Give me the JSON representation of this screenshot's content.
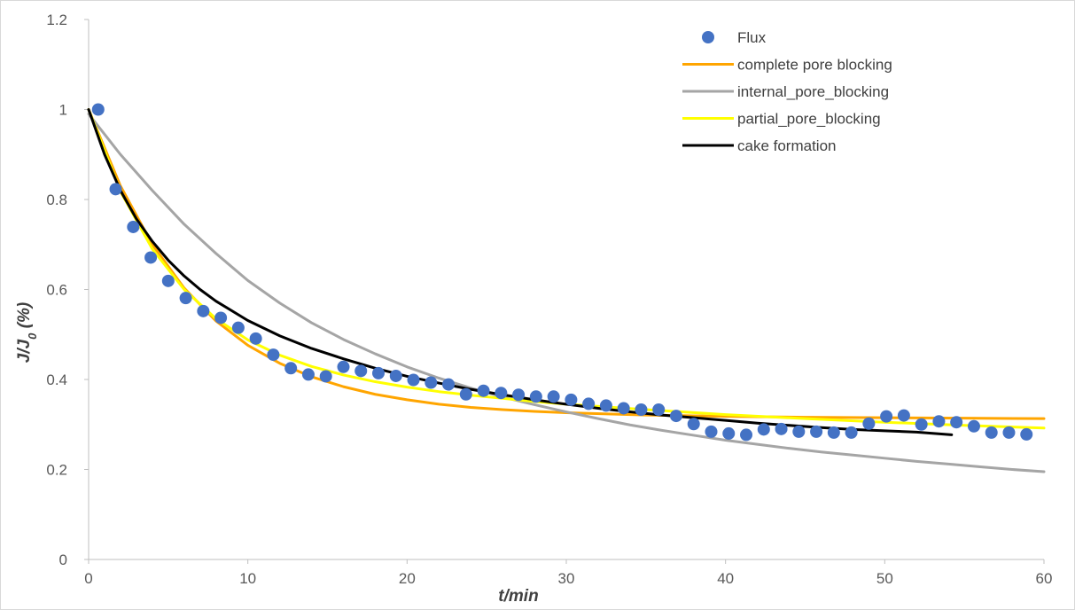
{
  "chart_data": {
    "type": "scatter",
    "title": "",
    "xlabel": "t/min",
    "ylabel_main": "J/J",
    "ylabel_sub": "0",
    "ylabel_suffix": " (%)",
    "xlim": [
      0,
      60
    ],
    "ylim": [
      0,
      1.2
    ],
    "xticks": [
      0,
      10,
      20,
      30,
      40,
      50,
      60
    ],
    "yticks": [
      0,
      0.2,
      0.4,
      0.6,
      0.8,
      1,
      1.2
    ],
    "grid": false,
    "legend_position": "top-right",
    "series": [
      {
        "name": "Flux",
        "kind": "marker",
        "color": "#4472C4",
        "points": [
          [
            0.6,
            1.0
          ],
          [
            1.7,
            0.823
          ],
          [
            2.8,
            0.739
          ],
          [
            3.9,
            0.671
          ],
          [
            5.0,
            0.619
          ],
          [
            6.1,
            0.581
          ],
          [
            7.2,
            0.552
          ],
          [
            8.3,
            0.537
          ],
          [
            9.4,
            0.515
          ],
          [
            10.5,
            0.491
          ],
          [
            11.6,
            0.455
          ],
          [
            12.7,
            0.425
          ],
          [
            13.8,
            0.411
          ],
          [
            14.9,
            0.407
          ],
          [
            16.0,
            0.428
          ],
          [
            17.1,
            0.419
          ],
          [
            18.2,
            0.414
          ],
          [
            19.3,
            0.408
          ],
          [
            20.4,
            0.399
          ],
          [
            21.5,
            0.393
          ],
          [
            22.6,
            0.389
          ],
          [
            23.7,
            0.367
          ],
          [
            24.8,
            0.375
          ],
          [
            25.9,
            0.37
          ],
          [
            27.0,
            0.366
          ],
          [
            28.1,
            0.362
          ],
          [
            29.2,
            0.362
          ],
          [
            30.3,
            0.355
          ],
          [
            31.4,
            0.346
          ],
          [
            32.5,
            0.342
          ],
          [
            33.6,
            0.336
          ],
          [
            34.7,
            0.333
          ],
          [
            35.8,
            0.333
          ],
          [
            36.9,
            0.319
          ],
          [
            38.0,
            0.301
          ],
          [
            39.1,
            0.284
          ],
          [
            40.2,
            0.28
          ],
          [
            41.3,
            0.277
          ],
          [
            42.4,
            0.289
          ],
          [
            43.5,
            0.29
          ],
          [
            44.6,
            0.284
          ],
          [
            45.7,
            0.284
          ],
          [
            46.8,
            0.282
          ],
          [
            47.9,
            0.282
          ],
          [
            49.0,
            0.302
          ],
          [
            50.1,
            0.318
          ],
          [
            51.2,
            0.32
          ],
          [
            52.3,
            0.3
          ],
          [
            53.4,
            0.307
          ],
          [
            54.5,
            0.305
          ],
          [
            55.6,
            0.296
          ],
          [
            56.7,
            0.282
          ],
          [
            57.8,
            0.282
          ],
          [
            58.9,
            0.278
          ]
        ]
      },
      {
        "name": "complete pore blocking",
        "kind": "line",
        "color": "#FFA500",
        "points": [
          [
            0,
            1.0
          ],
          [
            2,
            0.83
          ],
          [
            4,
            0.7
          ],
          [
            6,
            0.603
          ],
          [
            8,
            0.53
          ],
          [
            10,
            0.476
          ],
          [
            12,
            0.436
          ],
          [
            14,
            0.406
          ],
          [
            16,
            0.384
          ],
          [
            18,
            0.367
          ],
          [
            20,
            0.355
          ],
          [
            22,
            0.345
          ],
          [
            24,
            0.338
          ],
          [
            26,
            0.333
          ],
          [
            28,
            0.329
          ],
          [
            30,
            0.326
          ],
          [
            35,
            0.321
          ],
          [
            40,
            0.318
          ],
          [
            45,
            0.316
          ],
          [
            50,
            0.315
          ],
          [
            55,
            0.314
          ],
          [
            60,
            0.313
          ]
        ]
      },
      {
        "name": "internal_pore_blocking",
        "kind": "line",
        "color": "#A5A5A5",
        "points": [
          [
            0,
            0.99
          ],
          [
            2,
            0.9
          ],
          [
            4,
            0.82
          ],
          [
            6,
            0.745
          ],
          [
            8,
            0.68
          ],
          [
            10,
            0.62
          ],
          [
            12,
            0.57
          ],
          [
            14,
            0.526
          ],
          [
            16,
            0.489
          ],
          [
            18,
            0.457
          ],
          [
            20,
            0.428
          ],
          [
            22,
            0.403
          ],
          [
            24,
            0.381
          ],
          [
            26,
            0.361
          ],
          [
            28,
            0.344
          ],
          [
            30,
            0.328
          ],
          [
            32,
            0.313
          ],
          [
            34,
            0.299
          ],
          [
            36,
            0.287
          ],
          [
            38,
            0.276
          ],
          [
            40,
            0.265
          ],
          [
            42,
            0.256
          ],
          [
            44,
            0.247
          ],
          [
            46,
            0.239
          ],
          [
            48,
            0.232
          ],
          [
            50,
            0.225
          ],
          [
            52,
            0.218
          ],
          [
            54,
            0.212
          ],
          [
            56,
            0.206
          ],
          [
            58,
            0.2
          ],
          [
            60,
            0.195
          ]
        ]
      },
      {
        "name": "partial_pore_blocking",
        "kind": "line",
        "color": "#FFFF00",
        "points": [
          [
            0,
            1.0
          ],
          [
            2,
            0.818
          ],
          [
            4,
            0.69
          ],
          [
            6,
            0.6
          ],
          [
            8,
            0.535
          ],
          [
            10,
            0.488
          ],
          [
            12,
            0.454
          ],
          [
            14,
            0.429
          ],
          [
            16,
            0.41
          ],
          [
            18,
            0.395
          ],
          [
            20,
            0.383
          ],
          [
            22,
            0.373
          ],
          [
            24,
            0.365
          ],
          [
            26,
            0.358
          ],
          [
            28,
            0.351
          ],
          [
            30,
            0.345
          ],
          [
            35,
            0.333
          ],
          [
            40,
            0.322
          ],
          [
            45,
            0.313
          ],
          [
            50,
            0.305
          ],
          [
            55,
            0.298
          ],
          [
            60,
            0.292
          ]
        ]
      },
      {
        "name": "cake formation",
        "kind": "line",
        "color": "#000000",
        "points": [
          [
            0,
            1.0
          ],
          [
            1,
            0.9
          ],
          [
            2,
            0.82
          ],
          [
            3,
            0.757
          ],
          [
            4,
            0.707
          ],
          [
            5,
            0.665
          ],
          [
            6,
            0.63
          ],
          [
            7,
            0.6
          ],
          [
            8,
            0.574
          ],
          [
            10,
            0.531
          ],
          [
            12,
            0.497
          ],
          [
            14,
            0.469
          ],
          [
            16,
            0.446
          ],
          [
            18,
            0.425
          ],
          [
            20,
            0.407
          ],
          [
            22,
            0.392
          ],
          [
            24,
            0.378
          ],
          [
            26,
            0.366
          ],
          [
            28,
            0.355
          ],
          [
            30,
            0.345
          ],
          [
            32,
            0.336
          ],
          [
            34,
            0.328
          ],
          [
            36,
            0.321
          ],
          [
            38,
            0.315
          ],
          [
            40,
            0.309
          ],
          [
            42,
            0.303
          ],
          [
            44,
            0.298
          ],
          [
            46,
            0.293
          ],
          [
            48,
            0.289
          ],
          [
            50,
            0.286
          ],
          [
            52,
            0.283
          ],
          [
            54.2,
            0.277
          ]
        ]
      }
    ]
  }
}
